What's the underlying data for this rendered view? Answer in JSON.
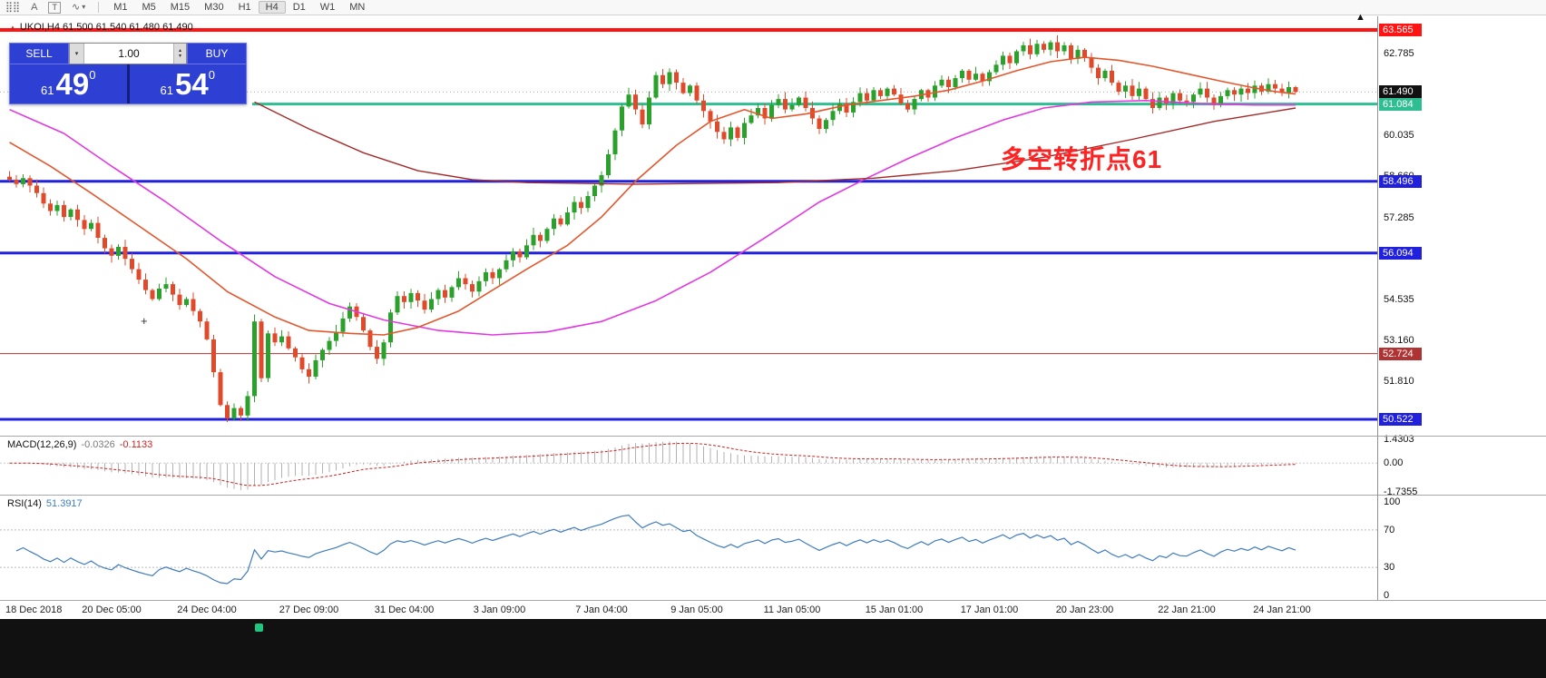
{
  "toolbar": {
    "icons": [
      {
        "name": "dots-grid-icon",
        "glyph": "⣿⣿"
      },
      {
        "name": "text-annotation-icon",
        "glyph": "A"
      },
      {
        "name": "text-label-icon",
        "glyph": "T"
      },
      {
        "name": "drawing-tool-icon",
        "glyph": "∿"
      },
      {
        "name": "dropdown-caret-icon",
        "glyph": "▾"
      }
    ],
    "timeframes": [
      "M1",
      "M5",
      "M15",
      "M30",
      "H1",
      "H4",
      "D1",
      "W1",
      "MN"
    ],
    "active_timeframe": "H4"
  },
  "trade_panel": {
    "sell_label": "SELL",
    "buy_label": "BUY",
    "volume": "1.00",
    "combo_icon": "▾",
    "spinner_up_icon": "▴",
    "spinner_down_icon": "▾",
    "sell_price": {
      "small": "61",
      "big": "49",
      "sup": "0"
    },
    "buy_price": {
      "small": "61",
      "big": "54",
      "sup": "0"
    },
    "panel_color": "#2e3fd4"
  },
  "chart": {
    "symbol_header": "UKOI,H4  61.500 61.540 61.480 61.490",
    "expand_icon": "▲",
    "shift_icon": "▲",
    "cross_marker": "+",
    "annotation": {
      "text": "多空转折点61",
      "color": "#ff2222"
    },
    "current_price": "61.490",
    "axis_ticks": [
      "62.785",
      "60.035",
      "58.660",
      "57.285",
      "54.535",
      "53.160",
      "51.810"
    ],
    "hlines": [
      {
        "price": 63.565,
        "color": "#ff1414",
        "width": 4,
        "badge": true
      },
      {
        "price": 61.49,
        "color": "#aaaaaa",
        "width": 1,
        "style": "dotted",
        "badge": true,
        "badge_color": "#111111",
        "role": "bid-line"
      },
      {
        "price": 61.084,
        "color": "#2fbe92",
        "width": 3,
        "badge": true,
        "start_index": 36
      },
      {
        "price": 58.496,
        "color": "#2121dd",
        "width": 3,
        "badge": true
      },
      {
        "price": 56.094,
        "color": "#2121dd",
        "width": 3,
        "badge": true
      },
      {
        "price": 52.724,
        "color": "#b03333",
        "width": 1,
        "badge": true
      },
      {
        "price": 50.522,
        "color": "#2121dd",
        "width": 3,
        "badge": true
      }
    ]
  },
  "chart_data": {
    "type": "candlestick",
    "symbol": "UKOI",
    "timeframe": "H4",
    "current_bar": {
      "open": 61.5,
      "high": 61.54,
      "low": 61.48,
      "close": 61.49
    },
    "price_range": [
      49.98,
      64.02
    ],
    "up_color": "#2aa12a",
    "down_color": "#e04a2a",
    "first_open": 58.65,
    "closes": [
      58.55,
      58.4,
      58.6,
      58.35,
      58.1,
      57.75,
      57.5,
      57.7,
      57.3,
      57.55,
      57.2,
      56.9,
      57.1,
      56.6,
      56.25,
      56.0,
      56.3,
      55.9,
      55.55,
      55.2,
      54.85,
      54.55,
      54.9,
      55.05,
      54.7,
      54.35,
      54.55,
      54.15,
      53.8,
      53.2,
      52.1,
      51.0,
      50.55,
      50.9,
      50.65,
      51.3,
      53.8,
      51.9,
      53.4,
      53.1,
      53.3,
      52.9,
      52.6,
      52.2,
      51.95,
      52.5,
      52.85,
      53.15,
      53.45,
      53.9,
      54.3,
      53.95,
      53.5,
      52.95,
      52.55,
      53.1,
      54.1,
      54.65,
      54.45,
      54.75,
      54.5,
      54.2,
      54.55,
      54.85,
      54.6,
      54.95,
      55.25,
      55.05,
      54.8,
      55.15,
      55.45,
      55.25,
      55.55,
      55.85,
      56.15,
      55.95,
      56.35,
      56.7,
      56.5,
      56.9,
      57.25,
      57.05,
      57.45,
      57.8,
      57.6,
      58.0,
      58.35,
      58.7,
      59.4,
      60.2,
      61.0,
      61.4,
      60.9,
      60.4,
      61.3,
      62.05,
      61.75,
      62.15,
      61.8,
      61.45,
      61.7,
      61.2,
      60.85,
      60.5,
      60.15,
      59.9,
      60.3,
      59.95,
      60.45,
      60.7,
      60.95,
      60.6,
      61.05,
      61.25,
      60.9,
      61.05,
      61.3,
      60.95,
      60.6,
      60.25,
      60.55,
      60.85,
      61.1,
      60.8,
      61.15,
      61.45,
      61.2,
      61.55,
      61.35,
      61.6,
      61.4,
      61.1,
      60.9,
      61.25,
      61.55,
      61.3,
      61.7,
      61.9,
      61.65,
      61.95,
      62.2,
      61.9,
      62.1,
      61.85,
      62.15,
      62.4,
      62.7,
      62.45,
      62.85,
      63.05,
      62.75,
      63.1,
      62.9,
      63.15,
      62.85,
      63.05,
      62.6,
      62.9,
      62.65,
      62.3,
      61.95,
      62.2,
      61.8,
      61.5,
      61.7,
      61.35,
      61.6,
      61.25,
      60.95,
      61.3,
      61.1,
      61.45,
      61.2,
      61.15,
      61.4,
      61.6,
      61.3,
      61.05,
      61.35,
      61.55,
      61.4,
      61.6,
      61.45,
      61.7,
      61.5,
      61.75,
      61.6,
      61.45,
      61.65,
      61.49
    ],
    "moving_averages": [
      {
        "name": "ma-magenta-line",
        "color": "#e238e2",
        "width": 1.6,
        "points": [
          [
            0,
            60.9
          ],
          [
            8,
            60.1
          ],
          [
            15,
            59.0
          ],
          [
            23,
            57.8
          ],
          [
            31,
            56.5
          ],
          [
            39,
            55.3
          ],
          [
            47,
            54.4
          ],
          [
            55,
            53.85
          ],
          [
            63,
            53.5
          ],
          [
            71,
            53.35
          ],
          [
            79,
            53.45
          ],
          [
            87,
            53.8
          ],
          [
            95,
            54.5
          ],
          [
            103,
            55.45
          ],
          [
            111,
            56.6
          ],
          [
            119,
            57.8
          ],
          [
            126,
            58.6
          ],
          [
            132,
            59.25
          ],
          [
            139,
            59.95
          ],
          [
            146,
            60.55
          ],
          [
            152,
            60.95
          ],
          [
            159,
            61.15
          ],
          [
            167,
            61.2
          ],
          [
            175,
            61.1
          ],
          [
            183,
            61.05
          ],
          [
            189,
            61.05
          ]
        ]
      },
      {
        "name": "ma-fast-orange-line",
        "color": "#e4572e",
        "width": 1.6,
        "points": [
          [
            0,
            59.8
          ],
          [
            6,
            59.0
          ],
          [
            12,
            58.1
          ],
          [
            19,
            57.0
          ],
          [
            26,
            55.9
          ],
          [
            32,
            54.8
          ],
          [
            39,
            53.95
          ],
          [
            44,
            53.5
          ],
          [
            50,
            53.4
          ],
          [
            55,
            53.35
          ],
          [
            60,
            53.6
          ],
          [
            66,
            54.15
          ],
          [
            71,
            54.85
          ],
          [
            76,
            55.55
          ],
          [
            82,
            56.35
          ],
          [
            87,
            57.3
          ],
          [
            92,
            58.5
          ],
          [
            98,
            59.7
          ],
          [
            103,
            60.5
          ],
          [
            108,
            60.9
          ],
          [
            112,
            60.6
          ],
          [
            117,
            60.75
          ],
          [
            123,
            61.05
          ],
          [
            128,
            61.2
          ],
          [
            133,
            61.35
          ],
          [
            138,
            61.55
          ],
          [
            143,
            61.85
          ],
          [
            148,
            62.2
          ],
          [
            153,
            62.5
          ],
          [
            158,
            62.65
          ],
          [
            163,
            62.55
          ],
          [
            168,
            62.35
          ],
          [
            173,
            62.1
          ],
          [
            178,
            61.85
          ],
          [
            183,
            61.62
          ],
          [
            186,
            61.5
          ],
          [
            189,
            61.42
          ]
        ]
      },
      {
        "name": "ma-slow-darkred-line",
        "color": "#a52a2a",
        "width": 1.4,
        "points": [
          [
            36,
            61.15
          ],
          [
            44,
            60.25
          ],
          [
            52,
            59.45
          ],
          [
            60,
            58.85
          ],
          [
            68,
            58.55
          ],
          [
            76,
            58.45
          ],
          [
            92,
            58.4
          ],
          [
            113,
            58.45
          ],
          [
            127,
            58.6
          ],
          [
            139,
            58.85
          ],
          [
            152,
            59.3
          ],
          [
            165,
            59.9
          ],
          [
            177,
            60.5
          ],
          [
            189,
            60.95
          ]
        ]
      }
    ],
    "x_labels": [
      {
        "text": "18 Dec 2018",
        "i": 0
      },
      {
        "text": "20 Dec 05:00",
        "i": 15
      },
      {
        "text": "24 Dec 04:00",
        "i": 29
      },
      {
        "text": "27 Dec 09:00",
        "i": 44
      },
      {
        "text": "31 Dec 04:00",
        "i": 58
      },
      {
        "text": "3 Jan 09:00",
        "i": 72
      },
      {
        "text": "7 Jan 04:00",
        "i": 87
      },
      {
        "text": "9 Jan 05:00",
        "i": 101
      },
      {
        "text": "11 Jan 05:00",
        "i": 115
      },
      {
        "text": "15 Jan 01:00",
        "i": 130
      },
      {
        "text": "17 Jan 01:00",
        "i": 144
      },
      {
        "text": "20 Jan 23:00",
        "i": 158
      },
      {
        "text": "22 Jan 21:00",
        "i": 173
      },
      {
        "text": "24 Jan 21:00",
        "i": 187
      }
    ]
  },
  "macd": {
    "label": "MACD(12,26,9)",
    "value_main": "-0.0326",
    "value_signal": "-0.1133",
    "histogram_color": "#b2b2b2",
    "signal_color": "#d02020",
    "axis": [
      {
        "label": "1.4303",
        "value": 1.4303
      },
      {
        "label": "0.00",
        "value": 0
      },
      {
        "label": "-1.7355",
        "value": -1.7355
      }
    ]
  },
  "rsi": {
    "label": "RSI(14)",
    "value": "51.3917",
    "color": "#3f7cc0",
    "levels": [
      100,
      70,
      30,
      0
    ]
  },
  "taskbar": {
    "color": "#111111",
    "accent_color": "#1fc77f"
  }
}
